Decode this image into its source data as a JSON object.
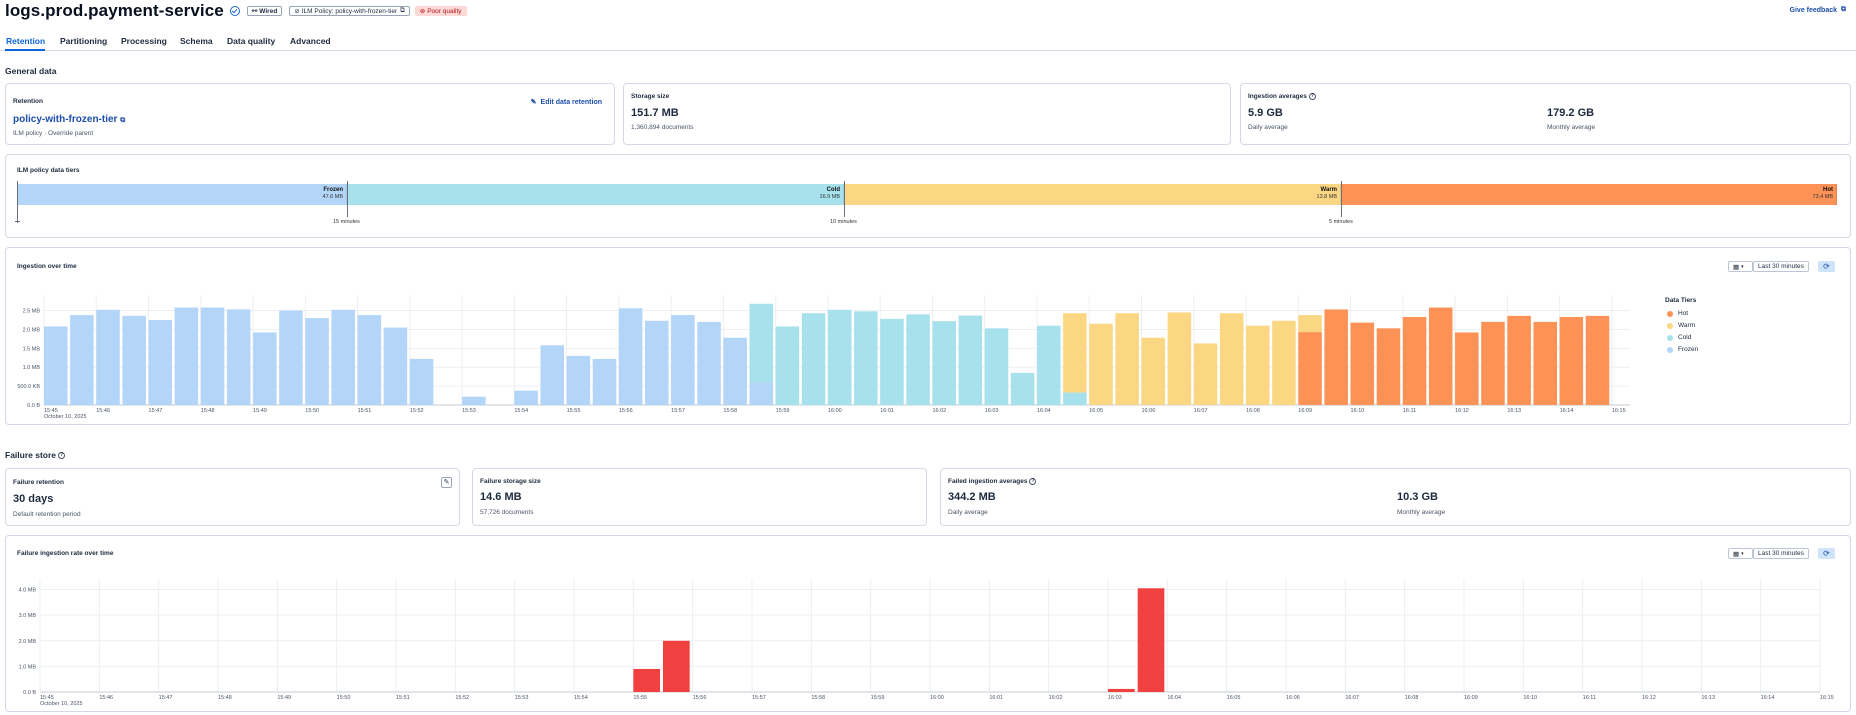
{
  "header": {
    "title": "logs.prod.payment-service",
    "badge_wired": "Wired",
    "badge_policy": "ILM Policy: policy-with-frozen-tier",
    "badge_quality": "Poor quality",
    "feedback": "Give feedback"
  },
  "tabs": [
    "Retention",
    "Partitioning",
    "Processing",
    "Schema",
    "Data quality",
    "Advanced"
  ],
  "general": {
    "section_title": "General data",
    "retention": {
      "label": "Retention",
      "edit": "Edit data retention",
      "policy": "policy-with-frozen-tier",
      "policy_sub": "ILM policy · Override parent"
    },
    "storage": {
      "label": "Storage size",
      "value": "151.7 MB",
      "sub": "1,360,894 documents"
    },
    "ingestion": {
      "label": "Ingestion averages",
      "daily_value": "5.9 GB",
      "daily_label": "Daily average",
      "monthly_value": "179.2 GB",
      "monthly_label": "Monthly average"
    }
  },
  "ilm": {
    "label": "ILM policy data tiers",
    "tiers": [
      {
        "name": "Frozen",
        "size": "47.6 MB",
        "color": "#b3d5f8"
      },
      {
        "name": "Cold",
        "size": "16.9 MB",
        "color": "#a6e1ec"
      },
      {
        "name": "Warm",
        "size": "13.8 MB",
        "color": "#fcd783"
      },
      {
        "name": "Hot",
        "size": "73.4 MB",
        "color": "#fd9256"
      }
    ],
    "ticks": [
      "15 minutes",
      "10 minutes",
      "5 minutes"
    ]
  },
  "ingestion_chart": {
    "title": "Ingestion over time",
    "range_label": "Last 30 minutes",
    "legend_title": "Data Tiers",
    "legend": [
      {
        "name": "Hot",
        "color": "#fd9256"
      },
      {
        "name": "Warm",
        "color": "#fcd783"
      },
      {
        "name": "Cold",
        "color": "#a6e1ec"
      },
      {
        "name": "Frozen",
        "color": "#b3d5f8"
      }
    ]
  },
  "failure": {
    "section_title": "Failure store",
    "retention": {
      "label": "Failure retention",
      "value": "30 days",
      "sub": "Default retention period"
    },
    "storage": {
      "label": "Failure storage size",
      "value": "14.6 MB",
      "sub": "57,726 documents"
    },
    "averages": {
      "label": "Failed ingestion averages",
      "daily_value": "344.2 MB",
      "daily_label": "Daily average",
      "monthly_value": "10.3 GB",
      "monthly_label": "Monthly average"
    }
  },
  "failure_chart": {
    "title": "Failure ingestion rate over time",
    "range_label": "Last 30 minutes"
  },
  "chart_data": [
    {
      "type": "bar",
      "title": "Ingestion over time",
      "x_first_label_sub": "October 10, 2025",
      "x_ticks": [
        "15:45",
        "15:46",
        "15:47",
        "15:48",
        "15:49",
        "15:50",
        "15:51",
        "15:52",
        "15:53",
        "15:54",
        "15:55",
        "15:56",
        "15:57",
        "15:58",
        "15:59",
        "16:00",
        "16:01",
        "16:02",
        "16:03",
        "16:04",
        "16:05",
        "16:06",
        "16:07",
        "16:08",
        "16:09",
        "16:10",
        "16:11",
        "16:12",
        "16:13",
        "16:14",
        "16:15"
      ],
      "y_ticks": [
        "0.0 B",
        "500.0 KB",
        "1.0 MB",
        "1.5 MB",
        "2.0 MB",
        "2.5 MB"
      ],
      "y_tick_values": [
        0,
        0.5,
        1.0,
        1.5,
        2.0,
        2.5
      ],
      "ylim": [
        0,
        2.7
      ],
      "x_range": [
        0,
        30.5
      ],
      "bar_width": 0.45,
      "legend": "right",
      "bars": [
        {
          "x": 0.0,
          "stack": [
            [
              "Frozen",
              2.08
            ]
          ]
        },
        {
          "x": 0.5,
          "stack": [
            [
              "Frozen",
              2.38
            ]
          ]
        },
        {
          "x": 1.0,
          "stack": [
            [
              "Frozen",
              2.52
            ]
          ]
        },
        {
          "x": 1.5,
          "stack": [
            [
              "Frozen",
              2.36
            ]
          ]
        },
        {
          "x": 2.0,
          "stack": [
            [
              "Frozen",
              2.25
            ]
          ]
        },
        {
          "x": 2.5,
          "stack": [
            [
              "Frozen",
              2.58
            ]
          ]
        },
        {
          "x": 3.0,
          "stack": [
            [
              "Frozen",
              2.58
            ]
          ]
        },
        {
          "x": 3.5,
          "stack": [
            [
              "Frozen",
              2.53
            ]
          ]
        },
        {
          "x": 4.0,
          "stack": [
            [
              "Frozen",
              1.92
            ]
          ]
        },
        {
          "x": 4.5,
          "stack": [
            [
              "Frozen",
              2.5
            ]
          ]
        },
        {
          "x": 5.0,
          "stack": [
            [
              "Frozen",
              2.3
            ]
          ]
        },
        {
          "x": 5.5,
          "stack": [
            [
              "Frozen",
              2.52
            ]
          ]
        },
        {
          "x": 6.0,
          "stack": [
            [
              "Frozen",
              2.38
            ]
          ]
        },
        {
          "x": 6.5,
          "stack": [
            [
              "Frozen",
              2.05
            ]
          ]
        },
        {
          "x": 7.0,
          "stack": [
            [
              "Frozen",
              1.22
            ]
          ]
        },
        {
          "x": 8.0,
          "stack": [
            [
              "Frozen",
              0.22
            ]
          ]
        },
        {
          "x": 9.0,
          "stack": [
            [
              "Frozen",
              0.38
            ]
          ]
        },
        {
          "x": 9.5,
          "stack": [
            [
              "Frozen",
              1.58
            ]
          ]
        },
        {
          "x": 10.0,
          "stack": [
            [
              "Frozen",
              1.3
            ]
          ]
        },
        {
          "x": 10.5,
          "stack": [
            [
              "Frozen",
              1.22
            ]
          ]
        },
        {
          "x": 11.0,
          "stack": [
            [
              "Frozen",
              2.56
            ]
          ]
        },
        {
          "x": 11.5,
          "stack": [
            [
              "Frozen",
              2.23
            ]
          ]
        },
        {
          "x": 12.0,
          "stack": [
            [
              "Frozen",
              2.38
            ]
          ]
        },
        {
          "x": 12.5,
          "stack": [
            [
              "Frozen",
              2.2
            ]
          ]
        },
        {
          "x": 13.0,
          "stack": [
            [
              "Frozen",
              1.78
            ]
          ]
        },
        {
          "x": 13.5,
          "stack": [
            [
              "Frozen",
              0.6
            ],
            [
              "Cold",
              2.08
            ]
          ]
        },
        {
          "x": 14.0,
          "stack": [
            [
              "Cold",
              2.08
            ]
          ]
        },
        {
          "x": 14.5,
          "stack": [
            [
              "Cold",
              2.43
            ]
          ]
        },
        {
          "x": 15.0,
          "stack": [
            [
              "Cold",
              2.52
            ]
          ]
        },
        {
          "x": 15.5,
          "stack": [
            [
              "Cold",
              2.48
            ]
          ]
        },
        {
          "x": 16.0,
          "stack": [
            [
              "Cold",
              2.28
            ]
          ]
        },
        {
          "x": 16.5,
          "stack": [
            [
              "Cold",
              2.4
            ]
          ]
        },
        {
          "x": 17.0,
          "stack": [
            [
              "Cold",
              2.22
            ]
          ]
        },
        {
          "x": 17.5,
          "stack": [
            [
              "Cold",
              2.37
            ]
          ]
        },
        {
          "x": 18.0,
          "stack": [
            [
              "Cold",
              2.03
            ]
          ]
        },
        {
          "x": 18.5,
          "stack": [
            [
              "Cold",
              0.85
            ]
          ]
        },
        {
          "x": 19.0,
          "stack": [
            [
              "Cold",
              2.1
            ]
          ]
        },
        {
          "x": 19.5,
          "stack": [
            [
              "Cold",
              0.33
            ],
            [
              "Warm",
              2.1
            ]
          ]
        },
        {
          "x": 20.0,
          "stack": [
            [
              "Warm",
              2.15
            ]
          ]
        },
        {
          "x": 20.5,
          "stack": [
            [
              "Warm",
              2.43
            ]
          ]
        },
        {
          "x": 21.0,
          "stack": [
            [
              "Warm",
              1.78
            ]
          ]
        },
        {
          "x": 21.5,
          "stack": [
            [
              "Warm",
              2.45
            ]
          ]
        },
        {
          "x": 22.0,
          "stack": [
            [
              "Warm",
              1.63
            ]
          ]
        },
        {
          "x": 22.5,
          "stack": [
            [
              "Warm",
              2.43
            ]
          ]
        },
        {
          "x": 23.0,
          "stack": [
            [
              "Warm",
              2.1
            ]
          ]
        },
        {
          "x": 23.5,
          "stack": [
            [
              "Warm",
              2.23
            ]
          ]
        },
        {
          "x": 24.0,
          "stack": [
            [
              "Hot",
              1.93
            ],
            [
              "Warm",
              0.45
            ]
          ]
        },
        {
          "x": 24.5,
          "stack": [
            [
              "Hot",
              2.53
            ]
          ]
        },
        {
          "x": 25.0,
          "stack": [
            [
              "Hot",
              2.18
            ]
          ]
        },
        {
          "x": 25.5,
          "stack": [
            [
              "Hot",
              2.03
            ]
          ]
        },
        {
          "x": 26.0,
          "stack": [
            [
              "Hot",
              2.33
            ]
          ]
        },
        {
          "x": 26.5,
          "stack": [
            [
              "Hot",
              2.58
            ]
          ]
        },
        {
          "x": 27.0,
          "stack": [
            [
              "Hot",
              1.92
            ]
          ]
        },
        {
          "x": 27.5,
          "stack": [
            [
              "Hot",
              2.2
            ]
          ]
        },
        {
          "x": 28.0,
          "stack": [
            [
              "Hot",
              2.36
            ]
          ]
        },
        {
          "x": 28.5,
          "stack": [
            [
              "Hot",
              2.2
            ]
          ]
        },
        {
          "x": 29.0,
          "stack": [
            [
              "Hot",
              2.33
            ]
          ]
        },
        {
          "x": 29.5,
          "stack": [
            [
              "Hot",
              2.36
            ]
          ]
        }
      ]
    },
    {
      "type": "bar",
      "title": "Failure ingestion rate over time",
      "x_first_label_sub": "October 10, 2025",
      "x_ticks": [
        "15:45",
        "15:46",
        "15:47",
        "15:48",
        "15:49",
        "15:50",
        "15:51",
        "15:52",
        "15:53",
        "15:54",
        "15:55",
        "15:56",
        "15:57",
        "15:58",
        "15:59",
        "16:00",
        "16:01",
        "16:02",
        "16:03",
        "16:04",
        "16:05",
        "16:06",
        "16:07",
        "16:08",
        "16:09",
        "16:10",
        "16:11",
        "16:12",
        "16:13",
        "16:14",
        "16:15"
      ],
      "y_ticks": [
        "0.0 B",
        "1.0 MB",
        "2.0 MB",
        "3.0 MB",
        "4.0 MB"
      ],
      "y_tick_values": [
        0,
        1,
        2,
        3,
        4
      ],
      "ylim": [
        0,
        4.1
      ],
      "x_range": [
        0,
        30
      ],
      "bar_width": 0.45,
      "color": "#f04040",
      "bars": [
        {
          "x": 10.0,
          "value": 0.9
        },
        {
          "x": 10.5,
          "value": 2.0
        },
        {
          "x": 18.0,
          "value": 0.12
        },
        {
          "x": 18.5,
          "value": 4.05
        }
      ]
    }
  ]
}
